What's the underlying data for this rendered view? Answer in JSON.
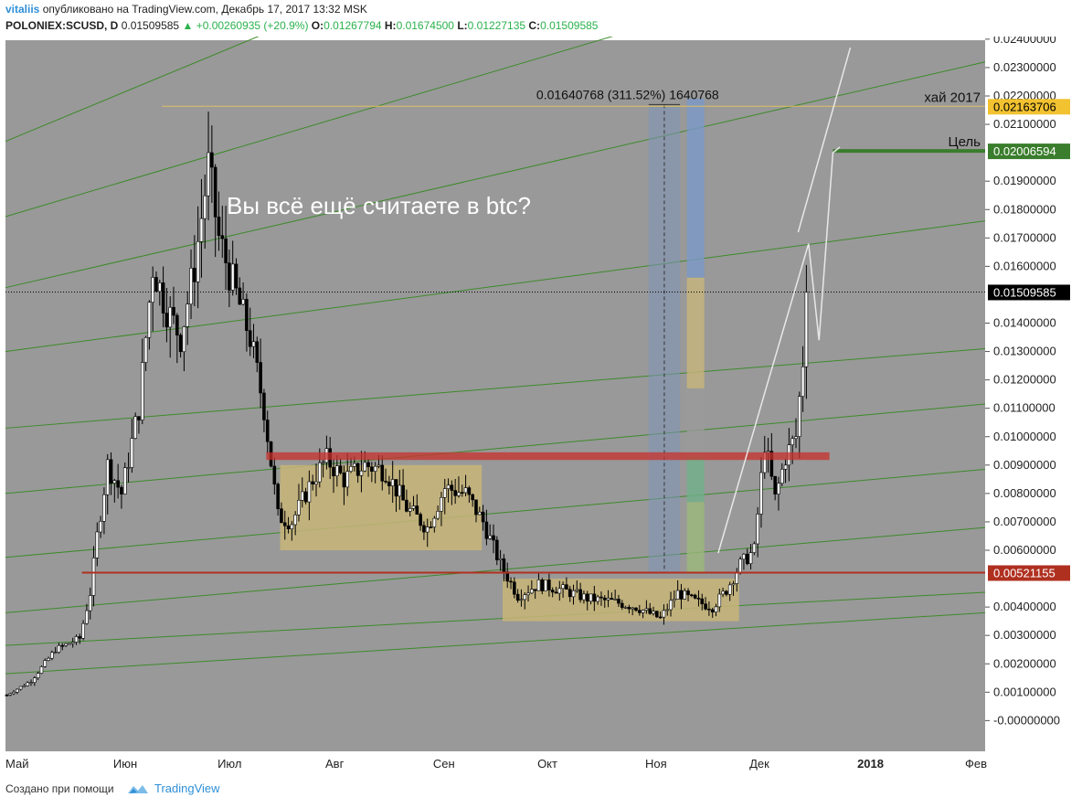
{
  "header": {
    "user": "vitaliis",
    "published": "опубликовано на TradingView.com, Декабрь 17, 2017 13:32 MSK",
    "symbol": "POLONIEX:SCUSD, D",
    "price": "0.01509585",
    "change": "+0.00260935 (+20.9%)",
    "o_label": "O:",
    "o_value": "0.01267794",
    "h_label": "H:",
    "h_value": "0.01674500",
    "l_label": "L:",
    "l_value": "0.01227135",
    "c_label": "C:",
    "c_value": "0.01509585"
  },
  "footer": {
    "created_with": "Создано при помощи",
    "brand": "TradingView"
  },
  "colors": {
    "background": "#999999",
    "up": "#ffffff",
    "down": "#000000",
    "channel": "#3d8a2a",
    "resistance": "#c8322c",
    "support": "#b03020",
    "zone": "#c8b578",
    "highline": "#e0c060",
    "target": "#3a7d2c",
    "projection": "#e8e8e8"
  },
  "chart_data": {
    "type": "candlestick",
    "symbol": "POLONIEX:SCUSD",
    "timeframe": "D",
    "y_ticks": [
      "0.02400000",
      "0.02300000",
      "0.02200000",
      "0.02100000",
      "0.01900000",
      "0.01800000",
      "0.01700000",
      "0.01600000",
      "0.01400000",
      "0.01300000",
      "0.01200000",
      "0.01100000",
      "0.01000000",
      "0.00900000",
      "0.00800000",
      "0.00700000",
      "0.00600000",
      "0.00400000",
      "0.00300000",
      "0.00200000",
      "0.00100000",
      "-0.00000000"
    ],
    "ylim": [
      -0.0001,
      0.0246
    ],
    "x_ticks": [
      {
        "label": "Май",
        "date": "2017-05-01",
        "bold": false
      },
      {
        "label": "Июн",
        "date": "2017-06-01",
        "bold": false
      },
      {
        "label": "Июл",
        "date": "2017-07-01",
        "bold": false
      },
      {
        "label": "Авг",
        "date": "2017-08-01",
        "bold": false
      },
      {
        "label": "Сен",
        "date": "2017-09-01",
        "bold": false
      },
      {
        "label": "Окт",
        "date": "2017-10-01",
        "bold": false
      },
      {
        "label": "Ноя",
        "date": "2017-11-01",
        "bold": false
      },
      {
        "label": "Дек",
        "date": "2017-12-01",
        "bold": false
      },
      {
        "label": "2018",
        "date": "2018-01-01",
        "bold": true
      },
      {
        "label": "Фев",
        "date": "2018-02-01",
        "bold": false
      }
    ],
    "price_line": {
      "value": 0.01509585,
      "label": "0.01509585"
    },
    "levels": [
      {
        "label": "0.02163706",
        "value": 0.02163706,
        "text": "хай 2017",
        "color": "#f2c230",
        "text_color": "#000000"
      },
      {
        "label": "0.02006594",
        "value": 0.02006594,
        "text": "Цель",
        "color": "#3a7d2c",
        "text_color": "#ffffff"
      },
      {
        "label": "0.00521155",
        "value": 0.00521155,
        "text": "",
        "color": "#b03020",
        "text_color": "#ffffff"
      }
    ],
    "measure_label": "0.01640768 (311.52%) 1640768",
    "annotation": "Вы всё ещё считаете в btc?",
    "anchors": [
      {
        "date": "2017-05-01",
        "close": 0.0009
      },
      {
        "date": "2017-05-08",
        "close": 0.0014
      },
      {
        "date": "2017-05-15",
        "close": 0.0025
      },
      {
        "date": "2017-05-22",
        "close": 0.0029
      },
      {
        "date": "2017-05-25",
        "close": 0.0045
      },
      {
        "date": "2017-05-27",
        "close": 0.0065
      },
      {
        "date": "2017-05-30",
        "close": 0.009
      },
      {
        "date": "2017-06-03",
        "close": 0.008
      },
      {
        "date": "2017-06-08",
        "close": 0.011
      },
      {
        "date": "2017-06-12",
        "close": 0.016
      },
      {
        "date": "2017-06-16",
        "close": 0.0145
      },
      {
        "date": "2017-06-20",
        "close": 0.0135
      },
      {
        "date": "2017-06-24",
        "close": 0.016
      },
      {
        "date": "2017-06-28",
        "close": 0.0195
      },
      {
        "date": "2017-07-01",
        "close": 0.017
      },
      {
        "date": "2017-07-06",
        "close": 0.015
      },
      {
        "date": "2017-07-10",
        "close": 0.0135
      },
      {
        "date": "2017-07-14",
        "close": 0.011
      },
      {
        "date": "2017-07-18",
        "close": 0.0072
      },
      {
        "date": "2017-07-22",
        "close": 0.007
      },
      {
        "date": "2017-07-28",
        "close": 0.0085
      },
      {
        "date": "2017-08-01",
        "close": 0.0092
      },
      {
        "date": "2017-08-06",
        "close": 0.0085
      },
      {
        "date": "2017-08-12",
        "close": 0.009
      },
      {
        "date": "2017-08-18",
        "close": 0.0088
      },
      {
        "date": "2017-08-24",
        "close": 0.0075
      },
      {
        "date": "2017-08-30",
        "close": 0.0068
      },
      {
        "date": "2017-09-04",
        "close": 0.0082
      },
      {
        "date": "2017-09-10",
        "close": 0.008
      },
      {
        "date": "2017-09-15",
        "close": 0.007
      },
      {
        "date": "2017-09-20",
        "close": 0.0055
      },
      {
        "date": "2017-09-25",
        "close": 0.0044
      },
      {
        "date": "2017-10-01",
        "close": 0.0048
      },
      {
        "date": "2017-10-08",
        "close": 0.0046
      },
      {
        "date": "2017-10-15",
        "close": 0.0043
      },
      {
        "date": "2017-10-22",
        "close": 0.0042
      },
      {
        "date": "2017-10-29",
        "close": 0.004
      },
      {
        "date": "2017-11-05",
        "close": 0.0036
      },
      {
        "date": "2017-11-10",
        "close": 0.0045
      },
      {
        "date": "2017-11-15",
        "close": 0.0042
      },
      {
        "date": "2017-11-20",
        "close": 0.004
      },
      {
        "date": "2017-11-24",
        "close": 0.0046
      },
      {
        "date": "2017-11-28",
        "close": 0.0055
      },
      {
        "date": "2017-12-02",
        "close": 0.006
      },
      {
        "date": "2017-12-05",
        "close": 0.0098
      },
      {
        "date": "2017-12-08",
        "close": 0.0078
      },
      {
        "date": "2017-12-11",
        "close": 0.0093
      },
      {
        "date": "2017-12-14",
        "close": 0.01
      },
      {
        "date": "2017-12-16",
        "close": 0.0127
      },
      {
        "date": "2017-12-17",
        "close": 0.01509585
      }
    ]
  }
}
